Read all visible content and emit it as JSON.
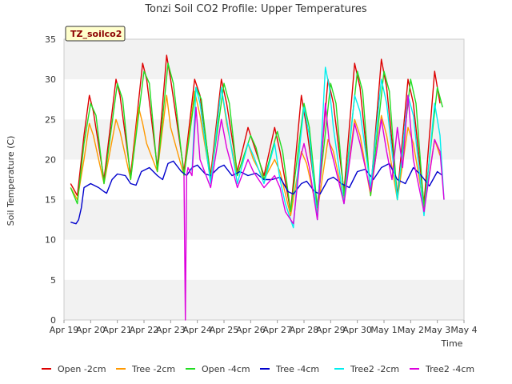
{
  "chart_data": {
    "type": "line",
    "title": "Tonzi Soil CO2 Profile: Upper Temperatures",
    "xlabel": "Time",
    "ylabel": "Soil Temperature (C)",
    "site_label": "TZ_soilco2",
    "ylim": [
      0,
      35
    ],
    "xlim": [
      0,
      15
    ],
    "yticks": [
      0,
      5,
      10,
      15,
      20,
      25,
      30,
      35
    ],
    "xticks": [
      {
        "x": 0,
        "label": "Apr 19"
      },
      {
        "x": 1,
        "label": "Apr 20"
      },
      {
        "x": 2,
        "label": "Apr 21"
      },
      {
        "x": 3,
        "label": "Apr 22"
      },
      {
        "x": 4,
        "label": "Apr 23"
      },
      {
        "x": 5,
        "label": "Apr 24"
      },
      {
        "x": 6,
        "label": "Apr 25"
      },
      {
        "x": 7,
        "label": "Apr 26"
      },
      {
        "x": 8,
        "label": "Apr 27"
      },
      {
        "x": 9,
        "label": "Apr 28"
      },
      {
        "x": 10,
        "label": "Apr 29"
      },
      {
        "x": 11,
        "label": "Apr 30"
      },
      {
        "x": 12,
        "label": "May 1"
      },
      {
        "x": 13,
        "label": "May 2"
      },
      {
        "x": 14,
        "label": "May 3"
      },
      {
        "x": 15,
        "label": "May 4"
      }
    ],
    "grid": "horizontal bands",
    "legend_position": "bottom",
    "series": [
      {
        "name": "Open -2cm",
        "color": "#dd0000",
        "x": [
          0.25,
          0.5,
          0.75,
          0.95,
          1.1,
          1.5,
          1.95,
          2.1,
          2.5,
          2.95,
          3.1,
          3.5,
          3.85,
          4.0,
          4.5,
          4.9,
          5.1,
          5.5,
          5.9,
          6.1,
          6.5,
          6.9,
          7.1,
          7.5,
          7.9,
          8.1,
          8.5,
          8.9,
          9.1,
          9.5,
          9.9,
          10.1,
          10.5,
          10.9,
          11.1,
          11.5,
          11.9,
          12.1,
          12.5,
          12.9,
          13.1,
          13.5,
          13.9,
          14.1
        ],
        "values": [
          17.0,
          15.5,
          23.0,
          28.0,
          26.0,
          17.5,
          30.0,
          28.0,
          18.0,
          32.0,
          30.0,
          19.0,
          33.0,
          30.0,
          18.5,
          30.0,
          28.0,
          18.0,
          30.0,
          27.0,
          18.5,
          24.0,
          22.0,
          18.0,
          24.0,
          21.0,
          13.5,
          28.0,
          24.0,
          14.0,
          30.0,
          27.0,
          16.0,
          32.0,
          29.0,
          16.0,
          32.5,
          29.0,
          15.5,
          30.0,
          27.0,
          14.5,
          31.0,
          27.0
        ]
      },
      {
        "name": "Tree -2cm",
        "color": "#ff9900",
        "x": [
          0.25,
          0.5,
          0.75,
          0.95,
          1.1,
          1.5,
          1.95,
          2.1,
          2.5,
          2.8,
          2.95,
          3.1,
          3.5,
          3.85,
          4.0,
          4.5,
          4.9,
          5.1,
          5.5,
          5.9,
          6.1,
          6.5,
          6.9,
          7.1,
          7.5,
          7.9,
          8.1,
          8.5,
          8.9,
          9.1,
          9.5,
          9.9,
          10.1,
          10.5,
          10.9,
          11.1,
          11.5,
          11.9,
          12.1,
          12.5,
          12.9,
          13.1,
          13.5,
          13.9,
          14.1
        ],
        "values": [
          16.5,
          15.0,
          20.0,
          24.5,
          23.0,
          17.0,
          25.0,
          23.5,
          17.5,
          26.5,
          24.5,
          22.0,
          18.5,
          28.0,
          24.0,
          18.0,
          28.5,
          25.5,
          17.5,
          29.0,
          24.5,
          18.0,
          22.0,
          20.0,
          17.5,
          20.0,
          18.5,
          13.0,
          21.0,
          19.5,
          13.5,
          22.5,
          21.0,
          15.0,
          25.0,
          23.0,
          15.5,
          25.5,
          23.0,
          15.0,
          24.0,
          22.0,
          14.0,
          22.5,
          20.5
        ]
      },
      {
        "name": "Open -4cm",
        "color": "#22dd22",
        "x": [
          0.25,
          0.5,
          0.75,
          1.0,
          1.2,
          1.5,
          2.0,
          2.2,
          2.5,
          3.0,
          3.2,
          3.5,
          3.9,
          4.1,
          4.5,
          4.95,
          5.15,
          5.5,
          6.0,
          6.2,
          6.5,
          7.0,
          7.2,
          7.5,
          8.0,
          8.2,
          8.5,
          9.0,
          9.2,
          9.5,
          10.0,
          10.2,
          10.5,
          11.0,
          11.2,
          11.5,
          12.0,
          12.2,
          12.5,
          13.0,
          13.2,
          13.5,
          14.0,
          14.2
        ],
        "values": [
          16.5,
          14.5,
          22.0,
          27.0,
          25.5,
          17.0,
          29.5,
          27.5,
          17.5,
          31.0,
          29.5,
          18.5,
          32.0,
          29.5,
          18.0,
          29.0,
          27.5,
          17.5,
          29.5,
          27.0,
          18.0,
          23.0,
          21.5,
          17.5,
          23.5,
          21.0,
          13.5,
          27.0,
          24.0,
          14.0,
          29.5,
          27.0,
          15.5,
          31.0,
          28.5,
          15.5,
          31.0,
          28.5,
          15.0,
          30.0,
          27.0,
          14.0,
          29.0,
          26.5
        ]
      },
      {
        "name": "Tree -4cm",
        "color": "#0000cc",
        "x": [
          0.25,
          0.45,
          0.55,
          0.65,
          0.75,
          1.0,
          1.3,
          1.5,
          1.6,
          1.8,
          2.0,
          2.3,
          2.5,
          2.7,
          2.9,
          3.2,
          3.5,
          3.7,
          3.9,
          4.1,
          4.4,
          4.6,
          4.8,
          5.0,
          5.3,
          5.5,
          5.8,
          6.0,
          6.3,
          6.6,
          6.9,
          7.2,
          7.5,
          7.8,
          8.1,
          8.4,
          8.6,
          8.9,
          9.1,
          9.4,
          9.6,
          9.9,
          10.1,
          10.4,
          10.7,
          11.0,
          11.3,
          11.6,
          11.9,
          12.2,
          12.5,
          12.8,
          13.1,
          13.4,
          13.7,
          14.0,
          14.2
        ],
        "values": [
          12.2,
          12.0,
          12.5,
          14.0,
          16.5,
          17.0,
          16.5,
          16.0,
          15.8,
          17.5,
          18.2,
          18.0,
          17.0,
          16.8,
          18.5,
          19.0,
          18.0,
          17.5,
          19.5,
          19.8,
          18.5,
          18.0,
          19.0,
          19.3,
          18.2,
          18.0,
          19.0,
          19.3,
          18.0,
          18.5,
          18.0,
          18.3,
          17.5,
          17.5,
          17.8,
          16.0,
          15.7,
          17.0,
          17.3,
          16.0,
          15.7,
          17.5,
          17.8,
          17.0,
          16.5,
          18.5,
          18.8,
          17.5,
          19.0,
          19.5,
          17.5,
          17.0,
          19.0,
          18.0,
          16.7,
          18.5,
          18.0
        ]
      },
      {
        "name": "Tree2 -2cm",
        "color": "#00eeee",
        "x": [
          4.8,
          4.95,
          5.1,
          5.5,
          5.9,
          6.1,
          6.5,
          6.9,
          7.1,
          7.5,
          7.9,
          8.1,
          8.3,
          8.6,
          8.85,
          9.0,
          9.2,
          9.5,
          9.8,
          9.95,
          10.1,
          10.5,
          10.9,
          11.1,
          11.5,
          11.9,
          12.1,
          12.5,
          12.9,
          13.1,
          13.5,
          13.9,
          14.1,
          14.25
        ],
        "values": [
          18.5,
          29.0,
          27.0,
          17.0,
          29.0,
          25.0,
          17.0,
          22.0,
          20.5,
          17.0,
          22.0,
          17.5,
          14.5,
          11.5,
          22.0,
          26.5,
          23.0,
          12.5,
          31.5,
          29.0,
          24.0,
          14.5,
          28.0,
          26.0,
          16.5,
          30.0,
          27.0,
          15.0,
          28.0,
          25.5,
          13.0,
          27.0,
          23.0,
          15.0
        ]
      },
      {
        "name": "Tree2 -4cm",
        "color": "#dd00dd",
        "x": [
          4.5,
          4.55,
          4.6,
          4.65,
          4.8,
          4.95,
          5.1,
          5.5,
          5.9,
          6.1,
          6.5,
          6.9,
          7.1,
          7.5,
          7.9,
          8.1,
          8.3,
          8.6,
          8.85,
          9.0,
          9.2,
          9.5,
          9.8,
          9.95,
          10.1,
          10.5,
          10.9,
          11.1,
          11.5,
          11.9,
          12.1,
          12.3,
          12.5,
          12.7,
          12.9,
          13.1,
          13.5,
          13.9,
          14.1,
          14.25
        ],
        "values": [
          18.0,
          0.0,
          18.0,
          19.0,
          18.0,
          26.5,
          20.0,
          16.5,
          25.0,
          21.5,
          16.5,
          20.0,
          18.5,
          16.5,
          18.0,
          16.5,
          13.5,
          12.0,
          20.0,
          22.0,
          19.0,
          12.5,
          27.0,
          22.0,
          20.0,
          14.5,
          24.5,
          22.0,
          16.0,
          25.0,
          21.0,
          17.5,
          24.0,
          19.0,
          28.0,
          20.0,
          13.5,
          22.5,
          21.0,
          15.0
        ]
      }
    ]
  }
}
